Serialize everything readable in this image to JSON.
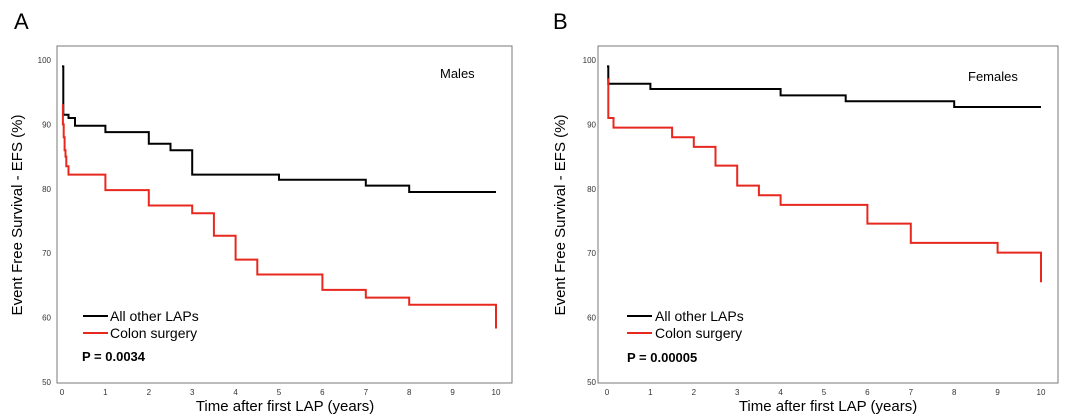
{
  "chart_data": [
    {
      "panel": "A",
      "type": "line",
      "step": true,
      "group_label": "Males",
      "xlabel": "Time after first LAP (years)",
      "ylabel": "Event Free Survival - EFS (%)",
      "xlim": [
        0,
        10
      ],
      "ylim": [
        50,
        100
      ],
      "xticks": [
        "0",
        "1",
        "2",
        "3",
        "4",
        "5",
        "6",
        "7",
        "8",
        "9",
        "10"
      ],
      "yticks": [
        "50",
        "60",
        "70",
        "80",
        "90",
        "100"
      ],
      "grid": false,
      "legend_position": "bottom-left",
      "p_value": "P = 0.0034",
      "series": [
        {
          "name": "All other LAPs",
          "color": "#000000",
          "x": [
            0,
            0.03,
            0.06,
            0.15,
            0.3,
            1.0,
            2.0,
            2.5,
            3.0,
            5.0,
            7.0,
            8.0,
            10.0
          ],
          "y": [
            99,
            91.5,
            91.5,
            91,
            89.8,
            88.8,
            87.0,
            86.0,
            82.2,
            81.4,
            80.5,
            79.5,
            79.5
          ]
        },
        {
          "name": "Colon surgery",
          "color": "#e8281e",
          "x": [
            0,
            0.02,
            0.04,
            0.06,
            0.08,
            0.1,
            0.15,
            1.0,
            2.0,
            3.0,
            3.5,
            4.0,
            4.5,
            6.0,
            7.0,
            8.0,
            10.0,
            10.0
          ],
          "y": [
            93,
            90,
            88,
            86,
            85,
            83.5,
            82.2,
            79.8,
            77.4,
            76.2,
            72.7,
            69.0,
            66.7,
            64.3,
            63.1,
            62.0,
            62.0,
            58.3
          ]
        }
      ]
    },
    {
      "panel": "B",
      "type": "line",
      "step": true,
      "group_label": "Females",
      "xlabel": "Time after first LAP (years)",
      "ylabel": "Event Free Survival - EFS (%)",
      "xlim": [
        0,
        10
      ],
      "ylim": [
        50,
        100
      ],
      "xticks": [
        "0",
        "1",
        "2",
        "3",
        "4",
        "5",
        "6",
        "7",
        "8",
        "9",
        "10"
      ],
      "yticks": [
        "50",
        "60",
        "70",
        "80",
        "90",
        "100"
      ],
      "grid": false,
      "legend_position": "bottom-left",
      "p_value": "P = 0.00005",
      "series": [
        {
          "name": "All other LAPs",
          "color": "#000000",
          "x": [
            0,
            0.03,
            1.0,
            4.0,
            5.5,
            8.0,
            10.0
          ],
          "y": [
            99,
            96.3,
            95.5,
            94.5,
            93.6,
            92.7,
            92.7
          ]
        },
        {
          "name": "Colon surgery",
          "color": "#e8281e",
          "x": [
            0,
            0.03,
            0.15,
            1.5,
            2.0,
            2.5,
            3.0,
            3.5,
            4.0,
            6.0,
            7.0,
            9.0,
            10.0,
            10.0
          ],
          "y": [
            97,
            91.0,
            89.5,
            88.0,
            86.5,
            83.6,
            80.5,
            79.0,
            77.5,
            74.6,
            71.6,
            70.1,
            70.1,
            65.5
          ]
        }
      ]
    }
  ]
}
